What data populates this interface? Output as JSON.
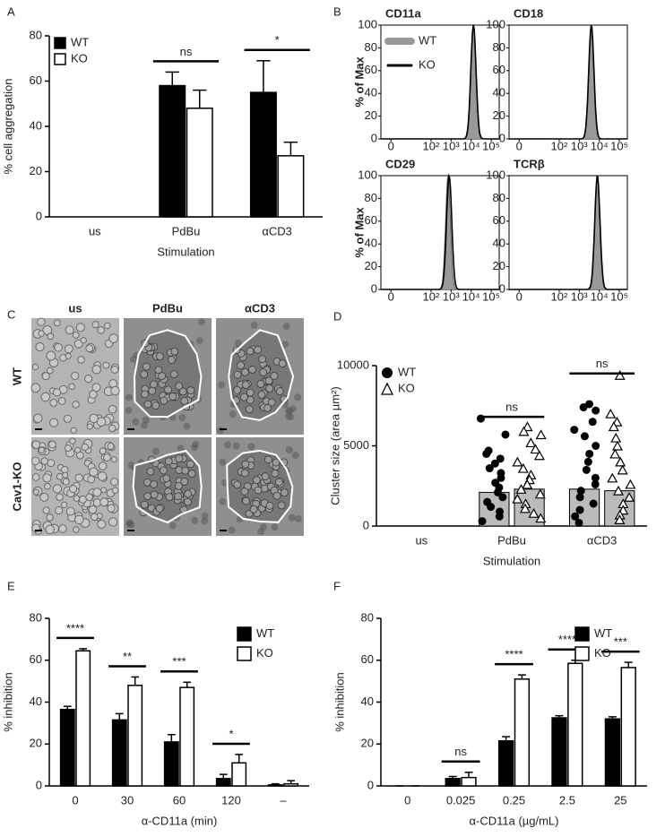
{
  "chart_data": [
    {
      "type": "bar",
      "label": "A",
      "ylabel": "% cell aggregation",
      "xlabel": "Stimulation",
      "categories": [
        "us",
        "PdBu",
        "αCD3"
      ],
      "series": [
        {
          "name": "WT",
          "color": "#000000",
          "values": [
            null,
            58,
            55
          ],
          "errors": [
            null,
            6,
            14
          ]
        },
        {
          "name": "KO",
          "color": "#ffffff",
          "values": [
            null,
            48,
            27
          ],
          "errors": [
            null,
            8,
            6
          ]
        }
      ],
      "annotations": [
        null,
        "ns",
        "*"
      ],
      "ylim": [
        0,
        80
      ],
      "yticks": [
        0,
        20,
        40,
        60,
        80
      ],
      "legend": "top-left"
    },
    {
      "type": "flow",
      "label": "B",
      "ylabel": "% of Max",
      "panels": [
        "CD11a",
        "CD18",
        "CD29",
        "TCRβ"
      ],
      "series": [
        {
          "name": "WT",
          "color": "#999999",
          "peaks": [
            13000,
            4000,
            700,
            8000
          ]
        },
        {
          "name": "KO",
          "color": "#000000",
          "peaks": [
            13000,
            4000,
            800,
            8000
          ]
        }
      ],
      "xscale": "symlog",
      "xlim": [
        -5,
        250000
      ],
      "xticks": [
        0,
        {
          "value": 100,
          "label": "10²"
        },
        {
          "value": 1000,
          "label": "10³"
        },
        {
          "value": 10000,
          "label": "10⁴"
        },
        {
          "value": 100000,
          "label": "10⁵"
        }
      ],
      "ylim": [
        0,
        100
      ],
      "yticks": [
        0,
        20,
        40,
        60,
        80,
        100
      ]
    },
    {
      "type": "bar-scatter",
      "label": "D",
      "ylabel": "Cluster size (area µm²)",
      "xlabel": "Stimulation",
      "categories": [
        "us",
        "PdBu",
        "αCD3"
      ],
      "bar_color": "#bbbbbb",
      "series": [
        {
          "name": "WT",
          "marker": "circle",
          "color": "#000000",
          "values": [
            null,
            2100,
            2300
          ],
          "points": [
            [],
            [
              6700,
              5700,
              4700,
              4500,
              4200,
              3900,
              3600,
              3300,
              3000,
              2700,
              2400,
              2100,
              1800,
              1500,
              1200,
              900,
              600,
              300
            ],
            [
              7600,
              7400,
              7200,
              6500,
              6000,
              5600,
              5000,
              4500,
              4000,
              3500,
              3000,
              2600,
              2200,
              1800,
              1400,
              1000,
              600,
              200
            ]
          ]
        },
        {
          "name": "KO",
          "marker": "triangle",
          "color": "#000000",
          "values": [
            null,
            2300,
            2200
          ],
          "points": [
            [],
            [
              6200,
              5900,
              5700,
              5200,
              4800,
              4400,
              4000,
              3600,
              3200,
              2900,
              2600,
              2300,
              2000,
              1700,
              1400,
              1100,
              800,
              500
            ],
            [
              9400,
              7000,
              6500,
              6200,
              5500,
              5000,
              4500,
              4000,
              3500,
              3000,
              2600,
              2200,
              1800,
              1400,
              1000,
              700,
              400
            ]
          ]
        }
      ],
      "annotations": [
        null,
        "ns",
        "ns"
      ],
      "ylim": [
        0,
        10000
      ],
      "yticks": [
        0,
        5000,
        10000
      ],
      "legend": "top-left"
    },
    {
      "type": "bar",
      "label": "E",
      "ylabel": "% inhibition",
      "xlabel": "α-CD11a (min)",
      "categories": [
        "0",
        "30",
        "60",
        "120",
        "–"
      ],
      "series": [
        {
          "name": "WT",
          "color": "#000000",
          "values": [
            36.5,
            31.5,
            21,
            3.5,
            0.5
          ],
          "errors": [
            1.5,
            3,
            3.5,
            2,
            0.5
          ]
        },
        {
          "name": "KO",
          "color": "#ffffff",
          "values": [
            64.5,
            48,
            47,
            11,
            1
          ],
          "errors": [
            1,
            4,
            2.5,
            4,
            1.5
          ]
        }
      ],
      "annotations": [
        "****",
        "**",
        "***",
        "*",
        null
      ],
      "ylim": [
        0,
        80
      ],
      "yticks": [
        0,
        20,
        40,
        60,
        80
      ],
      "legend": "top-right"
    },
    {
      "type": "bar",
      "label": "F",
      "ylabel": "% inhibition",
      "xlabel": "α-CD11a (µg/mL)",
      "categories": [
        "0",
        "0.025",
        "0.25",
        "2.5",
        "25"
      ],
      "series": [
        {
          "name": "WT",
          "color": "#000000",
          "values": [
            0,
            3.5,
            21.5,
            32.5,
            32
          ],
          "errors": [
            0,
            1,
            2,
            1,
            1
          ]
        },
        {
          "name": "KO",
          "color": "#ffffff",
          "values": [
            0,
            4,
            51,
            58.5,
            56.5
          ],
          "errors": [
            0,
            2.5,
            2,
            1.5,
            2.5
          ]
        }
      ],
      "annotations": [
        null,
        "ns",
        "****",
        "****",
        "***"
      ],
      "ylim": [
        0,
        80
      ],
      "yticks": [
        0,
        20,
        40,
        60,
        80
      ],
      "legend": "top-right"
    }
  ],
  "image_panel": {
    "label": "C",
    "columns": [
      "us",
      "PdBu",
      "αCD3"
    ],
    "rows": [
      "WT",
      "Cav1-KO"
    ]
  }
}
